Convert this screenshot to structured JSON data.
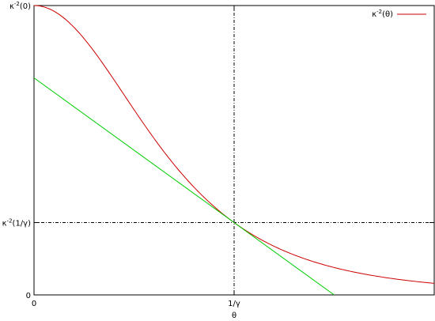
{
  "chart_data": {
    "type": "line",
    "title": "",
    "xlabel": "θ",
    "ylabel": "",
    "xlim": [
      0,
      2
    ],
    "ylim": [
      0,
      1
    ],
    "grid": false,
    "legend_position": "top-right",
    "x_ticks": [
      {
        "value": 0,
        "label": "0"
      },
      {
        "value": 1,
        "label": "1/γ"
      }
    ],
    "y_ticks": [
      {
        "value": 0,
        "label": "0"
      },
      {
        "value": 0.25,
        "label_base": "κ",
        "label_sup": "-2",
        "label_tail": "(1/γ)"
      },
      {
        "value": 1,
        "label_base": "κ",
        "label_sup": "-2",
        "label_tail": "(0)"
      }
    ],
    "reference_lines": {
      "vertical_x": 1,
      "horizontal_y": 0.25,
      "style": "dash-dot",
      "color": "#000000"
    },
    "series": [
      {
        "name_base": "κ",
        "name_sup": "-2",
        "name_tail": "(θ)",
        "color": "#cc0000",
        "function": "1/(1+x^2)^2",
        "x": [
          0,
          0.1,
          0.2,
          0.3,
          0.4,
          0.5,
          0.6,
          0.7,
          0.8,
          0.9,
          1.0,
          1.1,
          1.2,
          1.3,
          1.4,
          1.5,
          1.6,
          1.7,
          1.8,
          1.9,
          2.0
        ],
        "y": [
          1.0,
          0.98,
          0.925,
          0.842,
          0.743,
          0.64,
          0.541,
          0.45,
          0.372,
          0.305,
          0.25,
          0.205,
          0.168,
          0.139,
          0.116,
          0.095,
          0.079,
          0.067,
          0.056,
          0.048,
          0.04
        ]
      },
      {
        "color": "#00cc00",
        "function": "0.75 - 0.5*x",
        "x": [
          0,
          1.5
        ],
        "y": [
          0.75,
          0
        ]
      }
    ]
  }
}
